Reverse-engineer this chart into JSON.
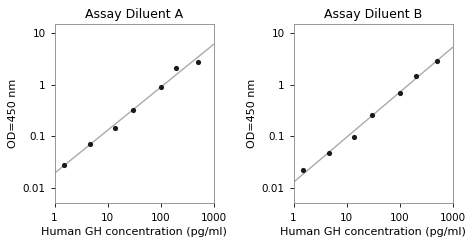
{
  "title_A": "Assay Diluent A",
  "title_B": "Assay Diluent B",
  "xlabel": "Human GH concentration (pg/ml)",
  "ylabel": "OD=450 nm",
  "xlim": [
    1,
    1000
  ],
  "ylim": [
    0.005,
    15
  ],
  "xticks": [
    1,
    10,
    100,
    1000
  ],
  "yticks": [
    0.01,
    0.1,
    1,
    10
  ],
  "ytick_labels": [
    "0.01",
    "0.1",
    "1",
    "10"
  ],
  "xtick_labels": [
    "1",
    "10",
    "100",
    "1000"
  ],
  "A_x": [
    1.5,
    4.7,
    14,
    30,
    100,
    200,
    500
  ],
  "A_y": [
    0.028,
    0.072,
    0.145,
    0.32,
    0.9,
    2.1,
    2.8
  ],
  "B_x": [
    1.5,
    4.7,
    14,
    30,
    100,
    200,
    500
  ],
  "B_y": [
    0.022,
    0.048,
    0.095,
    0.26,
    0.68,
    1.5,
    2.9
  ],
  "dot_color": "#1a1a1a",
  "line_color": "#aaaaaa",
  "bg_color": "#ffffff",
  "fig_bg_color": "#ffffff",
  "title_fontsize": 9,
  "label_fontsize": 8,
  "tick_fontsize": 7.5
}
